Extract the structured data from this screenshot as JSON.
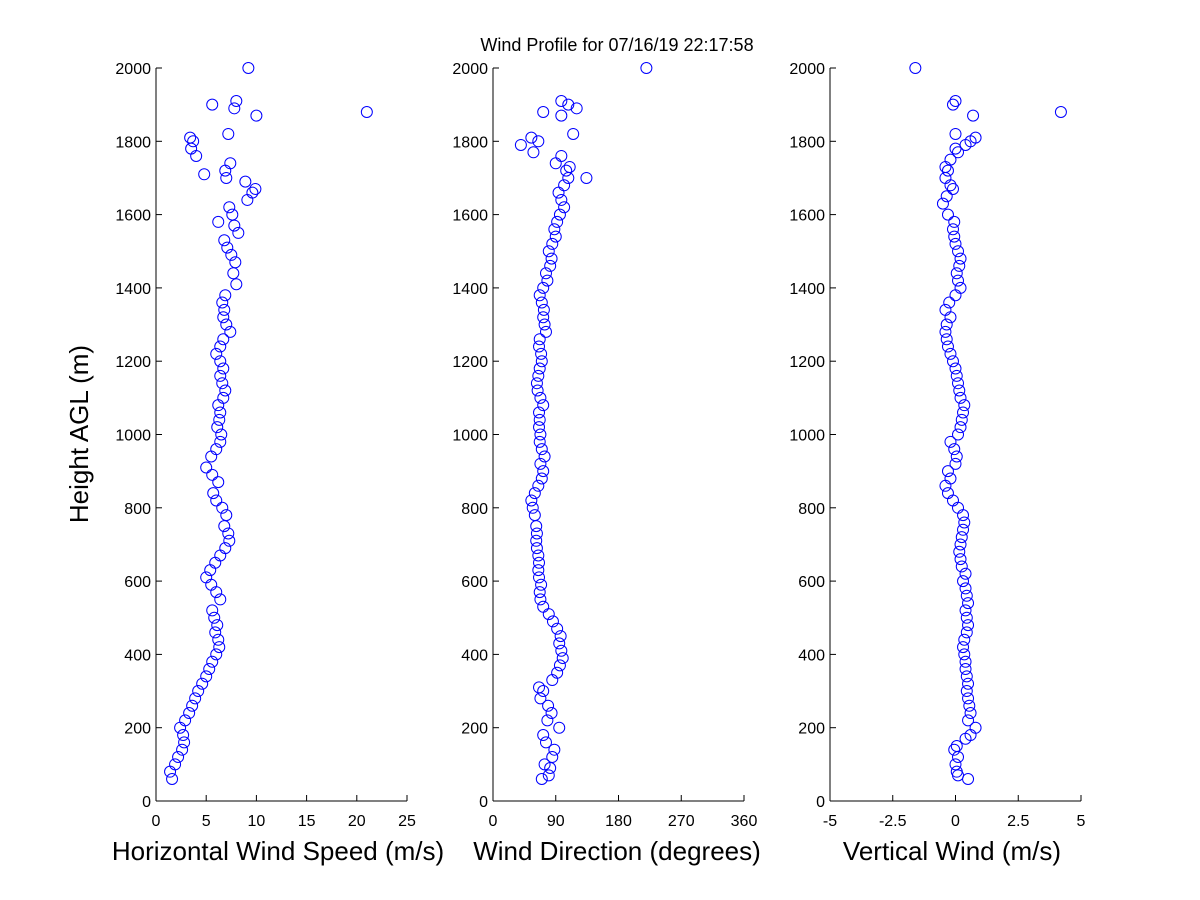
{
  "title": "Wind Profile for  07/16/19 22:17:58",
  "chart_data": [
    {
      "type": "scatter",
      "xlabel": "Horizontal Wind Speed (m/s)",
      "ylabel": "Height AGL (m)",
      "xlim": [
        0,
        25
      ],
      "ylim": [
        0,
        2000
      ],
      "xticks": [
        "0",
        "5",
        "10",
        "15",
        "20",
        "25"
      ],
      "yticks": [
        "0",
        "200",
        "400",
        "600",
        "800",
        "1000",
        "1200",
        "1400",
        "1600",
        "1800",
        "2000"
      ],
      "marker": "circle-open",
      "color": "#0000ff",
      "points": [
        [
          1.6,
          60
        ],
        [
          1.4,
          80
        ],
        [
          1.9,
          100
        ],
        [
          2.2,
          120
        ],
        [
          2.6,
          140
        ],
        [
          2.8,
          160
        ],
        [
          2.7,
          180
        ],
        [
          2.4,
          200
        ],
        [
          2.9,
          220
        ],
        [
          3.3,
          240
        ],
        [
          3.6,
          260
        ],
        [
          3.9,
          280
        ],
        [
          4.2,
          300
        ],
        [
          4.6,
          320
        ],
        [
          5.0,
          340
        ],
        [
          5.3,
          360
        ],
        [
          5.6,
          380
        ],
        [
          6.0,
          400
        ],
        [
          6.3,
          420
        ],
        [
          6.2,
          440
        ],
        [
          5.9,
          460
        ],
        [
          6.1,
          480
        ],
        [
          5.8,
          500
        ],
        [
          5.6,
          520
        ],
        [
          6.4,
          550
        ],
        [
          6.0,
          570
        ],
        [
          5.5,
          590
        ],
        [
          5.0,
          610
        ],
        [
          5.4,
          630
        ],
        [
          5.9,
          650
        ],
        [
          6.4,
          670
        ],
        [
          6.9,
          690
        ],
        [
          7.3,
          710
        ],
        [
          7.2,
          730
        ],
        [
          6.8,
          750
        ],
        [
          7.0,
          780
        ],
        [
          6.6,
          800
        ],
        [
          6.0,
          820
        ],
        [
          5.7,
          840
        ],
        [
          6.2,
          870
        ],
        [
          5.6,
          890
        ],
        [
          5.0,
          910
        ],
        [
          5.5,
          940
        ],
        [
          6.0,
          960
        ],
        [
          6.4,
          980
        ],
        [
          6.5,
          1000
        ],
        [
          6.1,
          1020
        ],
        [
          6.3,
          1040
        ],
        [
          6.4,
          1060
        ],
        [
          6.2,
          1080
        ],
        [
          6.7,
          1100
        ],
        [
          6.9,
          1120
        ],
        [
          6.6,
          1140
        ],
        [
          6.4,
          1160
        ],
        [
          6.7,
          1180
        ],
        [
          6.4,
          1200
        ],
        [
          6.0,
          1220
        ],
        [
          6.4,
          1240
        ],
        [
          6.7,
          1260
        ],
        [
          7.4,
          1280
        ],
        [
          7.0,
          1300
        ],
        [
          6.7,
          1320
        ],
        [
          6.8,
          1340
        ],
        [
          6.6,
          1360
        ],
        [
          6.9,
          1380
        ],
        [
          8.0,
          1410
        ],
        [
          7.7,
          1440
        ],
        [
          7.9,
          1470
        ],
        [
          7.5,
          1490
        ],
        [
          7.1,
          1510
        ],
        [
          6.8,
          1530
        ],
        [
          8.2,
          1550
        ],
        [
          7.8,
          1570
        ],
        [
          6.2,
          1580
        ],
        [
          7.6,
          1600
        ],
        [
          7.3,
          1620
        ],
        [
          9.1,
          1640
        ],
        [
          9.6,
          1660
        ],
        [
          9.9,
          1670
        ],
        [
          8.9,
          1690
        ],
        [
          6.9,
          1720
        ],
        [
          7.4,
          1740
        ],
        [
          7.0,
          1700
        ],
        [
          4.8,
          1710
        ],
        [
          4.0,
          1760
        ],
        [
          3.5,
          1780
        ],
        [
          3.7,
          1800
        ],
        [
          3.4,
          1810
        ],
        [
          7.2,
          1820
        ],
        [
          10.0,
          1870
        ],
        [
          21.0,
          1880
        ],
        [
          7.8,
          1890
        ],
        [
          5.6,
          1900
        ],
        [
          8.0,
          1910
        ],
        [
          9.2,
          2000
        ]
      ]
    },
    {
      "type": "scatter",
      "xlabel": "Wind Direction (degrees)",
      "ylabel": "",
      "xlim": [
        0,
        360
      ],
      "ylim": [
        0,
        2000
      ],
      "xticks": [
        "0",
        "90",
        "180",
        "270",
        "360"
      ],
      "yticks": [
        "0",
        "200",
        "400",
        "600",
        "800",
        "1000",
        "1200",
        "1400",
        "1600",
        "1800",
        "2000"
      ],
      "marker": "circle-open",
      "color": "#0000ff",
      "points": [
        [
          70,
          60
        ],
        [
          80,
          70
        ],
        [
          82,
          90
        ],
        [
          74,
          100
        ],
        [
          85,
          120
        ],
        [
          88,
          140
        ],
        [
          76,
          160
        ],
        [
          72,
          180
        ],
        [
          95,
          200
        ],
        [
          78,
          220
        ],
        [
          84,
          240
        ],
        [
          79,
          260
        ],
        [
          68,
          280
        ],
        [
          72,
          300
        ],
        [
          66,
          310
        ],
        [
          85,
          330
        ],
        [
          92,
          350
        ],
        [
          96,
          370
        ],
        [
          100,
          390
        ],
        [
          98,
          410
        ],
        [
          95,
          430
        ],
        [
          97,
          450
        ],
        [
          92,
          470
        ],
        [
          86,
          490
        ],
        [
          80,
          510
        ],
        [
          72,
          530
        ],
        [
          68,
          550
        ],
        [
          67,
          570
        ],
        [
          69,
          590
        ],
        [
          66,
          610
        ],
        [
          65,
          630
        ],
        [
          66,
          650
        ],
        [
          65,
          670
        ],
        [
          63,
          690
        ],
        [
          62,
          710
        ],
        [
          63,
          730
        ],
        [
          62,
          750
        ],
        [
          60,
          780
        ],
        [
          57,
          800
        ],
        [
          55,
          820
        ],
        [
          60,
          840
        ],
        [
          65,
          860
        ],
        [
          70,
          880
        ],
        [
          72,
          900
        ],
        [
          68,
          920
        ],
        [
          74,
          940
        ],
        [
          70,
          960
        ],
        [
          67,
          980
        ],
        [
          68,
          1000
        ],
        [
          66,
          1020
        ],
        [
          67,
          1040
        ],
        [
          66,
          1060
        ],
        [
          72,
          1080
        ],
        [
          68,
          1100
        ],
        [
          64,
          1120
        ],
        [
          63,
          1140
        ],
        [
          65,
          1160
        ],
        [
          67,
          1180
        ],
        [
          70,
          1200
        ],
        [
          69,
          1220
        ],
        [
          66,
          1240
        ],
        [
          67,
          1260
        ],
        [
          76,
          1280
        ],
        [
          74,
          1300
        ],
        [
          72,
          1320
        ],
        [
          73,
          1340
        ],
        [
          70,
          1360
        ],
        [
          67,
          1380
        ],
        [
          72,
          1400
        ],
        [
          78,
          1420
        ],
        [
          76,
          1440
        ],
        [
          82,
          1460
        ],
        [
          84,
          1480
        ],
        [
          80,
          1500
        ],
        [
          85,
          1520
        ],
        [
          90,
          1540
        ],
        [
          88,
          1560
        ],
        [
          92,
          1580
        ],
        [
          96,
          1600
        ],
        [
          102,
          1620
        ],
        [
          98,
          1640
        ],
        [
          94,
          1660
        ],
        [
          102,
          1680
        ],
        [
          108,
          1700
        ],
        [
          134,
          1700
        ],
        [
          105,
          1720
        ],
        [
          110,
          1730
        ],
        [
          90,
          1740
        ],
        [
          98,
          1760
        ],
        [
          58,
          1770
        ],
        [
          40,
          1790
        ],
        [
          65,
          1800
        ],
        [
          55,
          1810
        ],
        [
          115,
          1820
        ],
        [
          98,
          1870
        ],
        [
          72,
          1880
        ],
        [
          120,
          1890
        ],
        [
          108,
          1900
        ],
        [
          98,
          1910
        ],
        [
          220,
          2000
        ]
      ]
    },
    {
      "type": "scatter",
      "xlabel": "Vertical Wind (m/s)",
      "ylabel": "",
      "xlim": [
        -5,
        5
      ],
      "ylim": [
        0,
        2000
      ],
      "xticks": [
        "-5",
        "-2.5",
        "0",
        "2.5",
        "5"
      ],
      "yticks": [
        "0",
        "200",
        "400",
        "600",
        "800",
        "1000",
        "1200",
        "1400",
        "1600",
        "1800",
        "2000"
      ],
      "marker": "circle-open",
      "color": "#0000ff",
      "points": [
        [
          0.5,
          60
        ],
        [
          0.1,
          70
        ],
        [
          0.05,
          80
        ],
        [
          0.0,
          100
        ],
        [
          0.1,
          120
        ],
        [
          -0.05,
          140
        ],
        [
          0.05,
          150
        ],
        [
          0.4,
          170
        ],
        [
          0.6,
          180
        ],
        [
          0.8,
          200
        ],
        [
          0.5,
          220
        ],
        [
          0.6,
          240
        ],
        [
          0.55,
          260
        ],
        [
          0.5,
          280
        ],
        [
          0.45,
          300
        ],
        [
          0.5,
          320
        ],
        [
          0.45,
          340
        ],
        [
          0.4,
          360
        ],
        [
          0.4,
          380
        ],
        [
          0.35,
          400
        ],
        [
          0.3,
          420
        ],
        [
          0.35,
          440
        ],
        [
          0.45,
          460
        ],
        [
          0.5,
          480
        ],
        [
          0.45,
          500
        ],
        [
          0.4,
          520
        ],
        [
          0.5,
          540
        ],
        [
          0.45,
          560
        ],
        [
          0.4,
          580
        ],
        [
          0.3,
          600
        ],
        [
          0.4,
          620
        ],
        [
          0.25,
          640
        ],
        [
          0.2,
          660
        ],
        [
          0.15,
          680
        ],
        [
          0.2,
          700
        ],
        [
          0.25,
          720
        ],
        [
          0.3,
          740
        ],
        [
          0.35,
          760
        ],
        [
          0.3,
          780
        ],
        [
          0.1,
          800
        ],
        [
          -0.1,
          820
        ],
        [
          -0.3,
          840
        ],
        [
          -0.4,
          860
        ],
        [
          -0.2,
          880
        ],
        [
          -0.3,
          900
        ],
        [
          0.0,
          920
        ],
        [
          0.05,
          940
        ],
        [
          -0.05,
          960
        ],
        [
          -0.2,
          980
        ],
        [
          0.1,
          1000
        ],
        [
          0.2,
          1020
        ],
        [
          0.25,
          1040
        ],
        [
          0.3,
          1060
        ],
        [
          0.35,
          1080
        ],
        [
          0.2,
          1100
        ],
        [
          0.15,
          1120
        ],
        [
          0.1,
          1140
        ],
        [
          0.05,
          1160
        ],
        [
          0.0,
          1180
        ],
        [
          -0.1,
          1200
        ],
        [
          -0.2,
          1220
        ],
        [
          -0.3,
          1240
        ],
        [
          -0.35,
          1260
        ],
        [
          -0.4,
          1280
        ],
        [
          -0.35,
          1300
        ],
        [
          -0.2,
          1320
        ],
        [
          -0.4,
          1340
        ],
        [
          -0.25,
          1360
        ],
        [
          0.0,
          1380
        ],
        [
          0.2,
          1400
        ],
        [
          0.1,
          1420
        ],
        [
          0.05,
          1440
        ],
        [
          0.15,
          1460
        ],
        [
          0.2,
          1480
        ],
        [
          0.1,
          1500
        ],
        [
          0.0,
          1520
        ],
        [
          -0.05,
          1540
        ],
        [
          -0.1,
          1560
        ],
        [
          -0.05,
          1580
        ],
        [
          -0.3,
          1600
        ],
        [
          -0.5,
          1630
        ],
        [
          -0.35,
          1650
        ],
        [
          -0.1,
          1670
        ],
        [
          -0.2,
          1680
        ],
        [
          -0.4,
          1700
        ],
        [
          -0.3,
          1720
        ],
        [
          -0.4,
          1730
        ],
        [
          -0.2,
          1750
        ],
        [
          0.1,
          1770
        ],
        [
          0.0,
          1780
        ],
        [
          0.4,
          1790
        ],
        [
          0.6,
          1800
        ],
        [
          0.8,
          1810
        ],
        [
          0.0,
          1820
        ],
        [
          0.7,
          1870
        ],
        [
          4.2,
          1880
        ],
        [
          -0.1,
          1900
        ],
        [
          0.0,
          1910
        ],
        [
          -1.6,
          2000
        ]
      ]
    }
  ]
}
